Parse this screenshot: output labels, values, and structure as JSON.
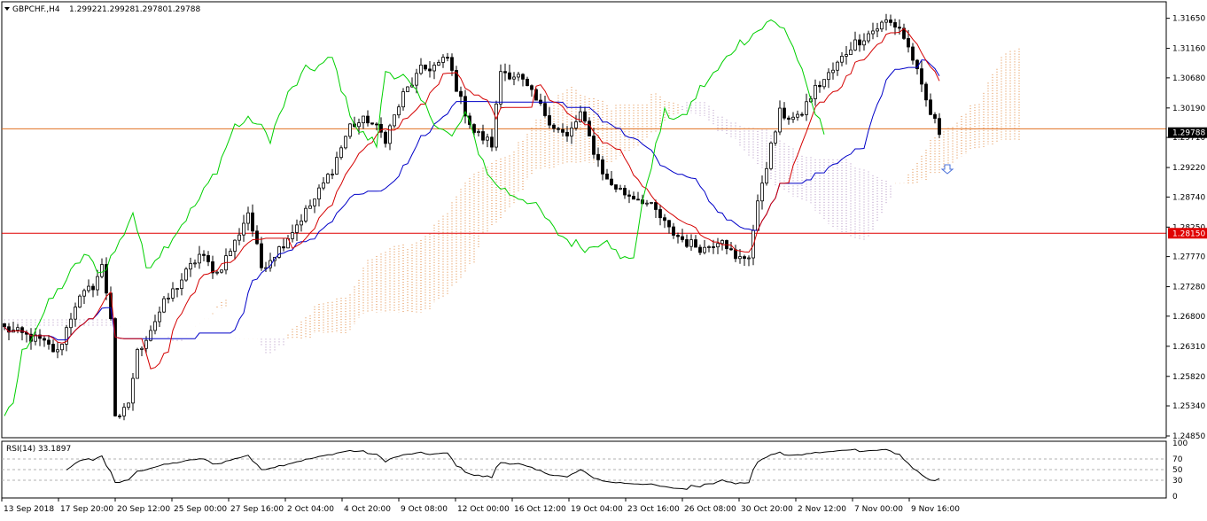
{
  "header": {
    "symbol_label": "GBPCHF.,H4",
    "open": "1.29922",
    "high": "1.29928",
    "low": "1.29780",
    "close": "1.29788"
  },
  "rsi_header": {
    "label": "RSI(14) 33.1897"
  },
  "colors": {
    "bull": "#000000",
    "bear": "#000000",
    "tenkan": "#d40000",
    "kijun": "#0000c8",
    "chikou": "#00d000",
    "cloud_up": "#e0863c",
    "cloud_down": "#b090c0",
    "level_orange": "#e07020",
    "level_red": "#e00000",
    "price_tag": "#000000",
    "level_tag": "#e00000",
    "arrow": "#4a70d8",
    "rsi_line": "#000000"
  },
  "chart_data": {
    "type": "candlestick",
    "symbol": "GBPCHF",
    "timeframe": "H4",
    "y_ticks": [
      "1.31650",
      "1.31160",
      "1.30680",
      "1.30190",
      "1.29710",
      "1.29220",
      "1.28740",
      "1.28250",
      "1.27770",
      "1.27280",
      "1.26800",
      "1.26310",
      "1.25820",
      "1.25340",
      "1.24850"
    ],
    "ylim": [
      1.2485,
      1.3189
    ],
    "x_ticks": [
      "13 Sep 2018",
      "17 Sep 20:00",
      "20 Sep 12:00",
      "25 Sep 00:00",
      "27 Sep 16:00",
      "2 Oct 04:00",
      "4 Oct 20:00",
      "9 Oct 08:00",
      "12 Oct 00:00",
      "16 Oct 12:00",
      "19 Oct 04:00",
      "23 Oct 16:00",
      "26 Oct 08:00",
      "30 Oct 20:00",
      "2 Nov 12:00",
      "7 Nov 00:00",
      "9 Nov 16:00"
    ],
    "current_price": {
      "value": 1.29788,
      "label": "1.29788"
    },
    "horizontal_levels": [
      {
        "value": 1.2985,
        "color": "orange"
      },
      {
        "value": 1.2815,
        "color": "red",
        "label": "1.28150"
      }
    ],
    "anchors": [
      [
        0,
        1.266
      ],
      [
        4,
        1.265
      ],
      [
        8,
        1.264
      ],
      [
        12,
        1.262
      ],
      [
        16,
        1.27
      ],
      [
        20,
        1.273
      ],
      [
        22,
        1.276
      ],
      [
        24,
        1.268
      ],
      [
        25,
        1.252
      ],
      [
        26,
        1.251
      ],
      [
        28,
        1.254
      ],
      [
        30,
        1.262
      ],
      [
        33,
        1.266
      ],
      [
        36,
        1.27
      ],
      [
        40,
        1.274
      ],
      [
        44,
        1.278
      ],
      [
        48,
        1.275
      ],
      [
        52,
        1.28
      ],
      [
        55,
        1.285
      ],
      [
        58,
        1.276
      ],
      [
        62,
        1.279
      ],
      [
        66,
        1.283
      ],
      [
        70,
        1.287
      ],
      [
        74,
        1.292
      ],
      [
        78,
        1.299
      ],
      [
        82,
        1.3
      ],
      [
        86,
        1.297
      ],
      [
        90,
        1.304
      ],
      [
        94,
        1.308
      ],
      [
        98,
        1.309
      ],
      [
        100,
        1.31
      ],
      [
        103,
        1.303
      ],
      [
        106,
        1.298
      ],
      [
        110,
        1.296
      ],
      [
        112,
        1.308
      ],
      [
        116,
        1.307
      ],
      [
        120,
        1.303
      ],
      [
        124,
        1.299
      ],
      [
        127,
        1.297
      ],
      [
        130,
        1.301
      ],
      [
        133,
        1.295
      ],
      [
        136,
        1.29
      ],
      [
        140,
        1.288
      ],
      [
        144,
        1.287
      ],
      [
        147,
        1.285
      ],
      [
        150,
        1.282
      ],
      [
        154,
        1.28
      ],
      [
        158,
        1.279
      ],
      [
        162,
        1.281
      ],
      [
        165,
        1.277
      ],
      [
        168,
        1.278
      ],
      [
        171,
        1.29
      ],
      [
        175,
        1.301
      ],
      [
        179,
        1.3
      ],
      [
        183,
        1.305
      ],
      [
        187,
        1.308
      ],
      [
        191,
        1.312
      ],
      [
        195,
        1.314
      ],
      [
        199,
        1.316
      ],
      [
        202,
        1.315
      ],
      [
        205,
        1.31
      ],
      [
        207,
        1.305
      ],
      [
        209,
        1.301
      ],
      [
        211,
        1.298
      ]
    ],
    "rsi": {
      "label": "RSI(14) 33.1897",
      "period": 14,
      "current": 33.1897,
      "levels": [
        70,
        50,
        30
      ],
      "ticks": [
        "100",
        "70",
        "50",
        "30",
        "0"
      ],
      "ylim": [
        0,
        100
      ]
    }
  }
}
